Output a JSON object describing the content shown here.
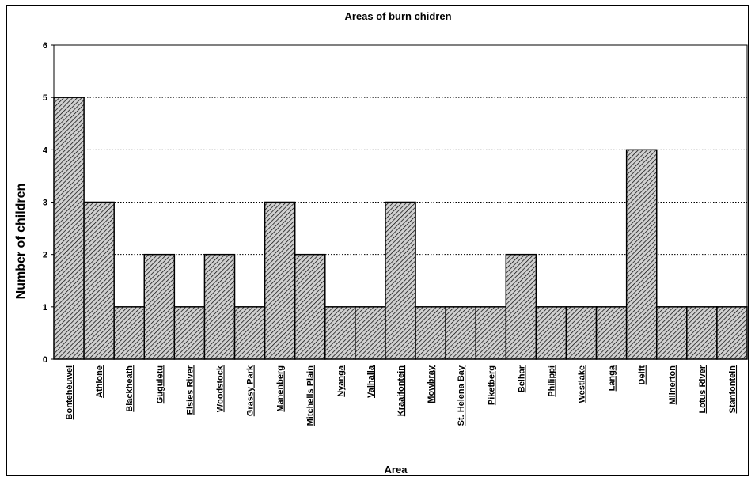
{
  "chart_data": {
    "type": "bar",
    "title": "Areas of burn chidren",
    "xlabel": "Area",
    "ylabel": "Number of children",
    "ylim": [
      0,
      6
    ],
    "yticks": [
      "0",
      "1",
      "2",
      "3",
      "4",
      "5",
      "6"
    ],
    "grid": "horizontal-dotted",
    "categories": [
      "Bontehéuwel",
      "Athlone",
      "Blackheath",
      "Guguletu",
      "Elsies River",
      "Woodstock",
      "Grassy Park",
      "Manenberg",
      "Mitchells Plain",
      "Nyanga",
      "Valhalla",
      "Kraaifontein",
      "Mowbray",
      "St. Helena Bay",
      "Piketberg",
      "Belhar",
      "Philippi",
      "Westlake",
      "Langa",
      "Delft",
      "Milnerton",
      "Lotus River",
      "Stanfontein"
    ],
    "values": [
      5,
      3,
      1,
      2,
      1,
      2,
      1,
      3,
      2,
      1,
      1,
      3,
      1,
      1,
      1,
      2,
      1,
      1,
      1,
      4,
      1,
      1,
      1
    ],
    "colors": {
      "bar_fill": "#c8c8c8",
      "bar_stroke": "#000000",
      "hatch": "#000000"
    }
  }
}
